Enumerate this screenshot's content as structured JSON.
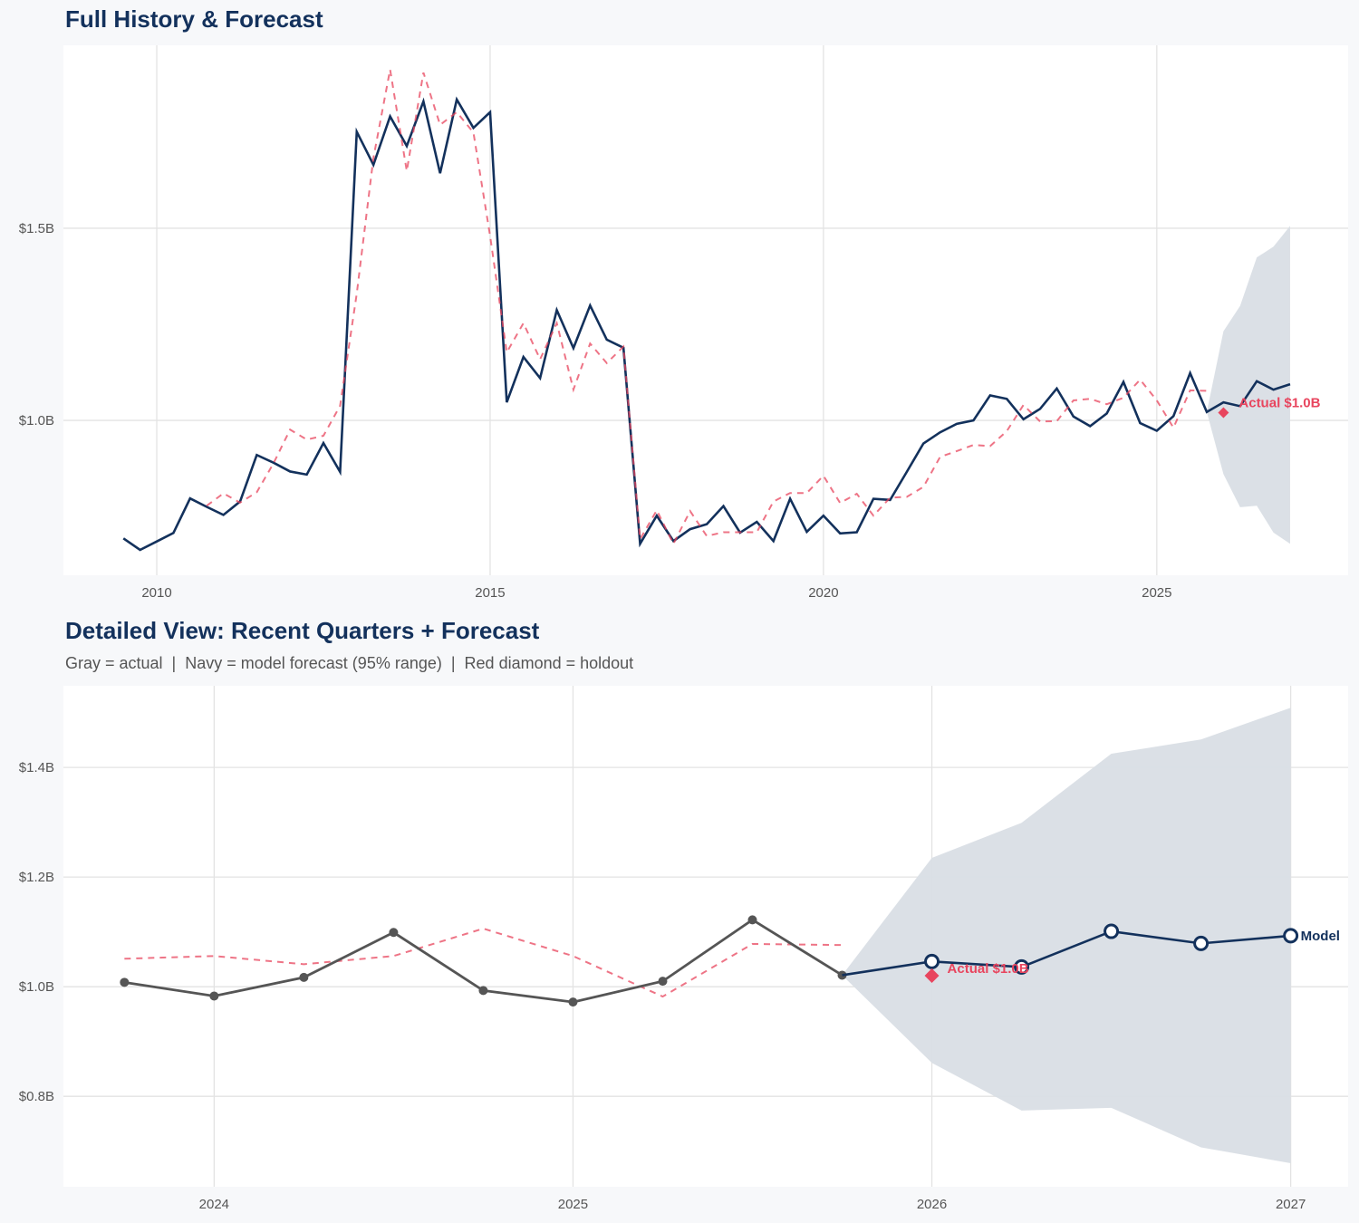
{
  "colors": {
    "navy": "#13315c",
    "red": "#e8455e",
    "gray": "#555555",
    "band": "#d9dee5",
    "background": "#f7f8fa"
  },
  "chart_data": [
    {
      "type": "line",
      "title": "Full History & Forecast",
      "xlim": [
        2008.6,
        2027.87
      ],
      "ylim": [
        0.597,
        1.976
      ],
      "x_ticks": [
        2010,
        2015,
        2020,
        2025
      ],
      "x_tick_labels": [
        "2010",
        "2015",
        "2020",
        "2025"
      ],
      "y_ticks": [
        1.0,
        1.5
      ],
      "y_tick_labels": [
        "$1.0B",
        "$1.5B"
      ],
      "grid": true,
      "series": [
        {
          "style": "navy-solid",
          "x": [
            2009.5,
            2009.75,
            2010,
            2010.25,
            2010.5,
            2010.75,
            2011,
            2011.25,
            2011.5,
            2011.75,
            2012,
            2012.25,
            2012.5,
            2012.75,
            2013,
            2013.25,
            2013.5,
            2013.75,
            2014,
            2014.25,
            2014.5,
            2014.75,
            2015,
            2015.25,
            2015.5,
            2015.75,
            2016,
            2016.25,
            2016.5,
            2016.75,
            2017,
            2017.25,
            2017.5,
            2017.75,
            2018,
            2018.25,
            2018.5,
            2018.75,
            2019,
            2019.25,
            2019.5,
            2019.75,
            2020,
            2020.25,
            2020.5,
            2020.75,
            2021,
            2021.25,
            2021.5,
            2021.75,
            2022,
            2022.25,
            2022.5,
            2022.75,
            2023,
            2023.25,
            2023.5,
            2023.75,
            2024,
            2024.25,
            2024.5,
            2024.75,
            2025,
            2025.25,
            2025.5,
            2025.75,
            2026,
            2026.25,
            2026.5,
            2026.75,
            2027
          ],
          "y": [
            0.693,
            0.663,
            0.685,
            0.707,
            0.797,
            0.775,
            0.754,
            0.789,
            0.91,
            0.89,
            0.867,
            0.859,
            0.941,
            0.866,
            1.751,
            1.665,
            1.791,
            1.714,
            1.83,
            1.643,
            1.835,
            1.761,
            1.802,
            1.047,
            1.165,
            1.11,
            1.287,
            1.188,
            1.299,
            1.21,
            1.189,
            0.679,
            0.752,
            0.686,
            0.717,
            0.73,
            0.777,
            0.708,
            0.736,
            0.686,
            0.796,
            0.71,
            0.752,
            0.706,
            0.709,
            0.796,
            0.793,
            0.866,
            0.94,
            0.969,
            0.991,
            1.0,
            1.065,
            1.056,
            1.003,
            1.03,
            1.083,
            1.01,
            0.985,
            1.018,
            1.1,
            0.993,
            0.973,
            1.011,
            1.123,
            1.022,
            1.047,
            1.037,
            1.102,
            1.08,
            1.094
          ]
        },
        {
          "style": "red-dashed",
          "x": [
            2010.75,
            2011,
            2011.25,
            2011.5,
            2011.75,
            2012,
            2012.25,
            2012.5,
            2012.75,
            2013,
            2013.25,
            2013.5,
            2013.75,
            2014,
            2014.25,
            2014.5,
            2014.75,
            2015,
            2015.25,
            2015.5,
            2015.75,
            2016,
            2016.25,
            2016.5,
            2016.75,
            2017,
            2017.25,
            2017.5,
            2017.75,
            2018,
            2018.25,
            2018.5,
            2018.75,
            2019,
            2019.25,
            2019.5,
            2019.75,
            2020,
            2020.25,
            2020.5,
            2020.75,
            2021,
            2021.25,
            2021.5,
            2021.75,
            2022,
            2022.25,
            2022.5,
            2022.75,
            2023,
            2023.25,
            2023.5,
            2023.75,
            2024,
            2024.25,
            2024.5,
            2024.75,
            2025,
            2025.25,
            2025.5,
            2025.75
          ],
          "y": [
            0.778,
            0.81,
            0.786,
            0.813,
            0.888,
            0.976,
            0.95,
            0.96,
            1.038,
            1.33,
            1.683,
            1.913,
            1.649,
            1.905,
            1.769,
            1.802,
            1.749,
            1.48,
            1.177,
            1.253,
            1.159,
            1.253,
            1.08,
            1.2,
            1.149,
            1.192,
            0.691,
            0.766,
            0.679,
            0.764,
            0.699,
            0.709,
            0.709,
            0.709,
            0.789,
            0.811,
            0.811,
            0.856,
            0.785,
            0.809,
            0.752,
            0.799,
            0.801,
            0.827,
            0.905,
            0.92,
            0.936,
            0.933,
            0.972,
            1.04,
            0.997,
            0.998,
            1.052,
            1.056,
            1.042,
            1.059,
            1.106,
            1.052,
            0.981,
            1.078,
            1.077
          ]
        }
      ],
      "band": {
        "x": [
          2025.75,
          2026,
          2026.25,
          2026.5,
          2026.75,
          2027
        ],
        "lower": [
          1.022,
          0.86,
          0.774,
          0.778,
          0.708,
          0.679
        ],
        "upper": [
          1.022,
          1.232,
          1.298,
          1.424,
          1.452,
          1.506
        ]
      },
      "holdout": {
        "x": 2026.0,
        "y": 1.02,
        "label": "Actual $1.0B"
      }
    },
    {
      "type": "line",
      "title": "Detailed View: Recent Quarters + Forecast",
      "subtitle": "Gray = actual  |  Navy = model forecast (95% range)  |  Red diamond = holdout",
      "xlim": [
        2023.58,
        2027.16
      ],
      "ylim": [
        0.635,
        1.549
      ],
      "x_ticks": [
        2024,
        2025,
        2026,
        2027
      ],
      "x_tick_labels": [
        "2024",
        "2025",
        "2026",
        "2027"
      ],
      "y_ticks": [
        0.8,
        1.0,
        1.2,
        1.4
      ],
      "y_tick_labels": [
        "$0.8B",
        "$1.0B",
        "$1.2B",
        "$1.4B"
      ],
      "grid": true,
      "series": [
        {
          "style": "red-dashed",
          "x": [
            2023.75,
            2024,
            2024.25,
            2024.5,
            2024.75,
            2025,
            2025.25,
            2025.5,
            2025.75
          ],
          "y": [
            1.051,
            1.056,
            1.041,
            1.056,
            1.106,
            1.056,
            0.982,
            1.078,
            1.076
          ]
        },
        {
          "style": "gray-markers",
          "x": [
            2023.75,
            2024,
            2024.25,
            2024.5,
            2024.75,
            2025,
            2025.25,
            2025.5,
            2025.75
          ],
          "y": [
            1.008,
            0.983,
            1.017,
            1.099,
            0.993,
            0.972,
            1.01,
            1.122,
            1.021
          ]
        },
        {
          "style": "navy-open-markers",
          "x": [
            2025.75,
            2026,
            2026.25,
            2026.5,
            2026.75,
            2027
          ],
          "y": [
            1.021,
            1.046,
            1.036,
            1.101,
            1.079,
            1.093
          ],
          "end_label": "Model"
        }
      ],
      "band": {
        "x": [
          2025.75,
          2026,
          2026.25,
          2026.5,
          2026.75,
          2027
        ],
        "lower": [
          1.021,
          0.861,
          0.774,
          0.779,
          0.707,
          0.678
        ],
        "upper": [
          1.021,
          1.235,
          1.299,
          1.425,
          1.451,
          1.509
        ]
      },
      "holdout": {
        "x": 2026.0,
        "y": 1.02,
        "label": "Actual $1.0B"
      }
    }
  ]
}
